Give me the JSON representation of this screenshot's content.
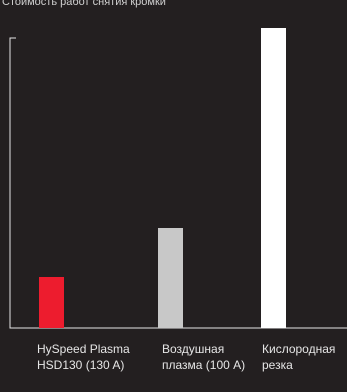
{
  "chart_data": {
    "type": "bar",
    "title": "Стоимость работ снятия кромки",
    "categories": [
      "HySpeed Plasma HSD130 (130 A)",
      "Воздушная плазма (100 A)",
      "Кислородная резка"
    ],
    "values": [
      51,
      100,
      300
    ],
    "colors": [
      "#ed1c2e",
      "#c8c8c8",
      "#ffffff"
    ],
    "ylim": [
      0,
      300
    ]
  }
}
